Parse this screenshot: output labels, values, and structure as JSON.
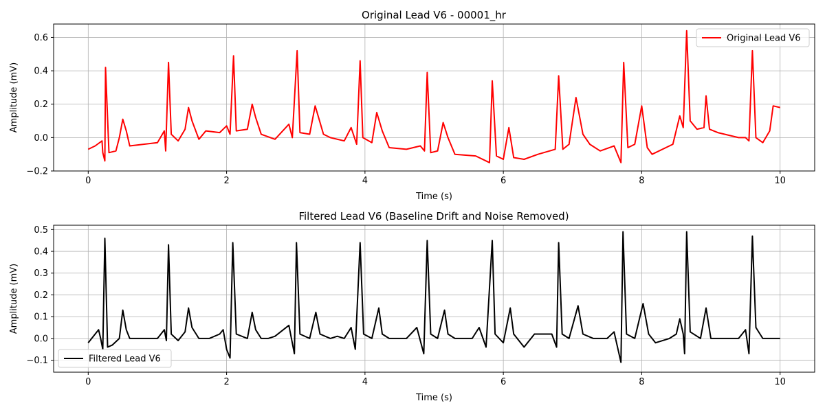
{
  "chart_data": [
    {
      "type": "line",
      "title": "Original Lead V6 - 00001_hr",
      "xlabel": "Time (s)",
      "ylabel": "Amplitude (mV)",
      "xlim": [
        -0.5,
        10.5
      ],
      "ylim": [
        -0.2,
        0.68
      ],
      "xticks": [
        0,
        2,
        4,
        6,
        8,
        10
      ],
      "yticks": [
        -0.2,
        0.0,
        0.2,
        0.4,
        0.6
      ],
      "ytick_labels": [
        "−0.2",
        "0.0",
        "0.2",
        "0.4",
        "0.6"
      ],
      "grid": true,
      "legend_position": "upper right",
      "series": [
        {
          "name": "Original Lead V6",
          "color": "#ff0000",
          "points": [
            [
              0.0,
              -0.07
            ],
            [
              0.1,
              -0.05
            ],
            [
              0.2,
              -0.02
            ],
            [
              0.21,
              -0.09
            ],
            [
              0.24,
              -0.14
            ],
            [
              0.25,
              0.42
            ],
            [
              0.3,
              -0.09
            ],
            [
              0.4,
              -0.08
            ],
            [
              0.45,
              0.0
            ],
            [
              0.5,
              0.11
            ],
            [
              0.55,
              0.04
            ],
            [
              0.6,
              -0.05
            ],
            [
              0.8,
              -0.04
            ],
            [
              1.0,
              -0.03
            ],
            [
              1.1,
              0.04
            ],
            [
              1.12,
              -0.08
            ],
            [
              1.16,
              0.45
            ],
            [
              1.2,
              0.02
            ],
            [
              1.3,
              -0.02
            ],
            [
              1.4,
              0.05
            ],
            [
              1.45,
              0.18
            ],
            [
              1.5,
              0.1
            ],
            [
              1.6,
              -0.01
            ],
            [
              1.7,
              0.04
            ],
            [
              1.9,
              0.03
            ],
            [
              2.0,
              0.07
            ],
            [
              2.05,
              0.02
            ],
            [
              2.1,
              0.49
            ],
            [
              2.14,
              0.04
            ],
            [
              2.3,
              0.05
            ],
            [
              2.37,
              0.2
            ],
            [
              2.42,
              0.12
            ],
            [
              2.5,
              0.02
            ],
            [
              2.7,
              -0.01
            ],
            [
              2.9,
              0.08
            ],
            [
              2.95,
              0.0
            ],
            [
              3.02,
              0.52
            ],
            [
              3.06,
              0.03
            ],
            [
              3.2,
              0.02
            ],
            [
              3.28,
              0.19
            ],
            [
              3.33,
              0.12
            ],
            [
              3.4,
              0.02
            ],
            [
              3.5,
              0.0
            ],
            [
              3.7,
              -0.02
            ],
            [
              3.8,
              0.06
            ],
            [
              3.88,
              -0.04
            ],
            [
              3.93,
              0.46
            ],
            [
              3.97,
              0.0
            ],
            [
              4.1,
              -0.03
            ],
            [
              4.17,
              0.15
            ],
            [
              4.25,
              0.04
            ],
            [
              4.35,
              -0.06
            ],
            [
              4.6,
              -0.07
            ],
            [
              4.8,
              -0.05
            ],
            [
              4.86,
              -0.08
            ],
            [
              4.9,
              0.39
            ],
            [
              4.95,
              -0.09
            ],
            [
              5.05,
              -0.08
            ],
            [
              5.13,
              0.09
            ],
            [
              5.2,
              0.0
            ],
            [
              5.3,
              -0.1
            ],
            [
              5.6,
              -0.11
            ],
            [
              5.8,
              -0.15
            ],
            [
              5.84,
              0.34
            ],
            [
              5.9,
              -0.11
            ],
            [
              6.0,
              -0.13
            ],
            [
              6.08,
              0.06
            ],
            [
              6.15,
              -0.12
            ],
            [
              6.3,
              -0.13
            ],
            [
              6.5,
              -0.1
            ],
            [
              6.75,
              -0.07
            ],
            [
              6.8,
              0.37
            ],
            [
              6.86,
              -0.07
            ],
            [
              6.95,
              -0.04
            ],
            [
              7.05,
              0.24
            ],
            [
              7.15,
              0.02
            ],
            [
              7.25,
              -0.04
            ],
            [
              7.4,
              -0.08
            ],
            [
              7.6,
              -0.05
            ],
            [
              7.7,
              -0.15
            ],
            [
              7.74,
              0.45
            ],
            [
              7.8,
              -0.06
            ],
            [
              7.9,
              -0.04
            ],
            [
              8.0,
              0.19
            ],
            [
              8.08,
              -0.06
            ],
            [
              8.15,
              -0.1
            ],
            [
              8.4,
              -0.05
            ],
            [
              8.45,
              -0.04
            ],
            [
              8.55,
              0.13
            ],
            [
              8.6,
              0.06
            ],
            [
              8.65,
              0.64
            ],
            [
              8.7,
              0.1
            ],
            [
              8.8,
              0.05
            ],
            [
              8.9,
              0.06
            ],
            [
              8.93,
              0.25
            ],
            [
              8.98,
              0.05
            ],
            [
              9.1,
              0.03
            ],
            [
              9.4,
              0.0
            ],
            [
              9.5,
              0.0
            ],
            [
              9.55,
              -0.02
            ],
            [
              9.6,
              0.52
            ],
            [
              9.65,
              0.0
            ],
            [
              9.75,
              -0.03
            ],
            [
              9.85,
              0.04
            ],
            [
              9.9,
              0.19
            ],
            [
              10.0,
              0.18
            ]
          ]
        }
      ]
    },
    {
      "type": "line",
      "title": "Filtered Lead V6 (Baseline Drift and Noise Removed)",
      "xlabel": "Time (s)",
      "ylabel": "Amplitude (mV)",
      "xlim": [
        -0.5,
        10.5
      ],
      "ylim": [
        -0.155,
        0.52
      ],
      "xticks": [
        0,
        2,
        4,
        6,
        8,
        10
      ],
      "yticks": [
        -0.1,
        0.0,
        0.1,
        0.2,
        0.3,
        0.4,
        0.5
      ],
      "ytick_labels": [
        "−0.1",
        "0.0",
        "0.1",
        "0.2",
        "0.3",
        "0.4",
        "0.5"
      ],
      "grid": true,
      "legend_position": "lower left",
      "series": [
        {
          "name": "Filtered Lead V6",
          "color": "#000000",
          "points": [
            [
              0.0,
              -0.02
            ],
            [
              0.1,
              0.02
            ],
            [
              0.15,
              0.04
            ],
            [
              0.18,
              0.0
            ],
            [
              0.21,
              -0.05
            ],
            [
              0.24,
              0.46
            ],
            [
              0.28,
              -0.04
            ],
            [
              0.35,
              -0.03
            ],
            [
              0.45,
              0.0
            ],
            [
              0.5,
              0.13
            ],
            [
              0.55,
              0.04
            ],
            [
              0.6,
              0.0
            ],
            [
              0.8,
              0.0
            ],
            [
              1.0,
              0.0
            ],
            [
              1.1,
              0.04
            ],
            [
              1.13,
              -0.01
            ],
            [
              1.16,
              0.43
            ],
            [
              1.2,
              0.02
            ],
            [
              1.3,
              -0.01
            ],
            [
              1.4,
              0.03
            ],
            [
              1.45,
              0.14
            ],
            [
              1.5,
              0.05
            ],
            [
              1.6,
              0.0
            ],
            [
              1.75,
              0.0
            ],
            [
              1.9,
              0.02
            ],
            [
              1.95,
              0.04
            ],
            [
              2.0,
              -0.05
            ],
            [
              2.05,
              -0.09
            ],
            [
              2.09,
              0.44
            ],
            [
              2.14,
              0.02
            ],
            [
              2.3,
              0.0
            ],
            [
              2.37,
              0.12
            ],
            [
              2.42,
              0.04
            ],
            [
              2.5,
              0.0
            ],
            [
              2.6,
              0.0
            ],
            [
              2.7,
              0.01
            ],
            [
              2.9,
              0.06
            ],
            [
              2.98,
              -0.07
            ],
            [
              3.01,
              0.44
            ],
            [
              3.06,
              0.02
            ],
            [
              3.2,
              0.0
            ],
            [
              3.29,
              0.12
            ],
            [
              3.35,
              0.02
            ],
            [
              3.5,
              0.0
            ],
            [
              3.6,
              0.01
            ],
            [
              3.7,
              0.0
            ],
            [
              3.8,
              0.05
            ],
            [
              3.86,
              -0.05
            ],
            [
              3.93,
              0.44
            ],
            [
              3.98,
              0.02
            ],
            [
              4.1,
              0.0
            ],
            [
              4.2,
              0.14
            ],
            [
              4.25,
              0.02
            ],
            [
              4.35,
              0.0
            ],
            [
              4.6,
              0.0
            ],
            [
              4.75,
              0.05
            ],
            [
              4.85,
              -0.07
            ],
            [
              4.9,
              0.45
            ],
            [
              4.95,
              0.02
            ],
            [
              5.05,
              0.0
            ],
            [
              5.15,
              0.13
            ],
            [
              5.2,
              0.02
            ],
            [
              5.3,
              0.0
            ],
            [
              5.55,
              0.0
            ],
            [
              5.65,
              0.05
            ],
            [
              5.75,
              -0.04
            ],
            [
              5.84,
              0.45
            ],
            [
              5.88,
              0.02
            ],
            [
              6.0,
              -0.02
            ],
            [
              6.1,
              0.14
            ],
            [
              6.15,
              0.02
            ],
            [
              6.3,
              -0.04
            ],
            [
              6.45,
              0.02
            ],
            [
              6.7,
              0.02
            ],
            [
              6.77,
              -0.04
            ],
            [
              6.8,
              0.44
            ],
            [
              6.85,
              0.02
            ],
            [
              6.95,
              0.0
            ],
            [
              7.08,
              0.15
            ],
            [
              7.15,
              0.02
            ],
            [
              7.3,
              0.0
            ],
            [
              7.5,
              0.0
            ],
            [
              7.6,
              0.03
            ],
            [
              7.7,
              -0.11
            ],
            [
              7.73,
              0.49
            ],
            [
              7.78,
              0.02
            ],
            [
              7.9,
              0.0
            ],
            [
              8.02,
              0.16
            ],
            [
              8.1,
              0.02
            ],
            [
              8.2,
              -0.02
            ],
            [
              8.4,
              0.0
            ],
            [
              8.5,
              0.02
            ],
            [
              8.55,
              0.09
            ],
            [
              8.6,
              0.02
            ],
            [
              8.62,
              -0.07
            ],
            [
              8.65,
              0.49
            ],
            [
              8.7,
              0.03
            ],
            [
              8.85,
              0.0
            ],
            [
              8.93,
              0.14
            ],
            [
              9.0,
              0.0
            ],
            [
              9.2,
              0.0
            ],
            [
              9.4,
              0.0
            ],
            [
              9.5,
              0.04
            ],
            [
              9.55,
              -0.07
            ],
            [
              9.6,
              0.47
            ],
            [
              9.65,
              0.05
            ],
            [
              9.75,
              0.0
            ],
            [
              9.9,
              0.0
            ],
            [
              10.0,
              0.0
            ]
          ]
        }
      ]
    }
  ]
}
